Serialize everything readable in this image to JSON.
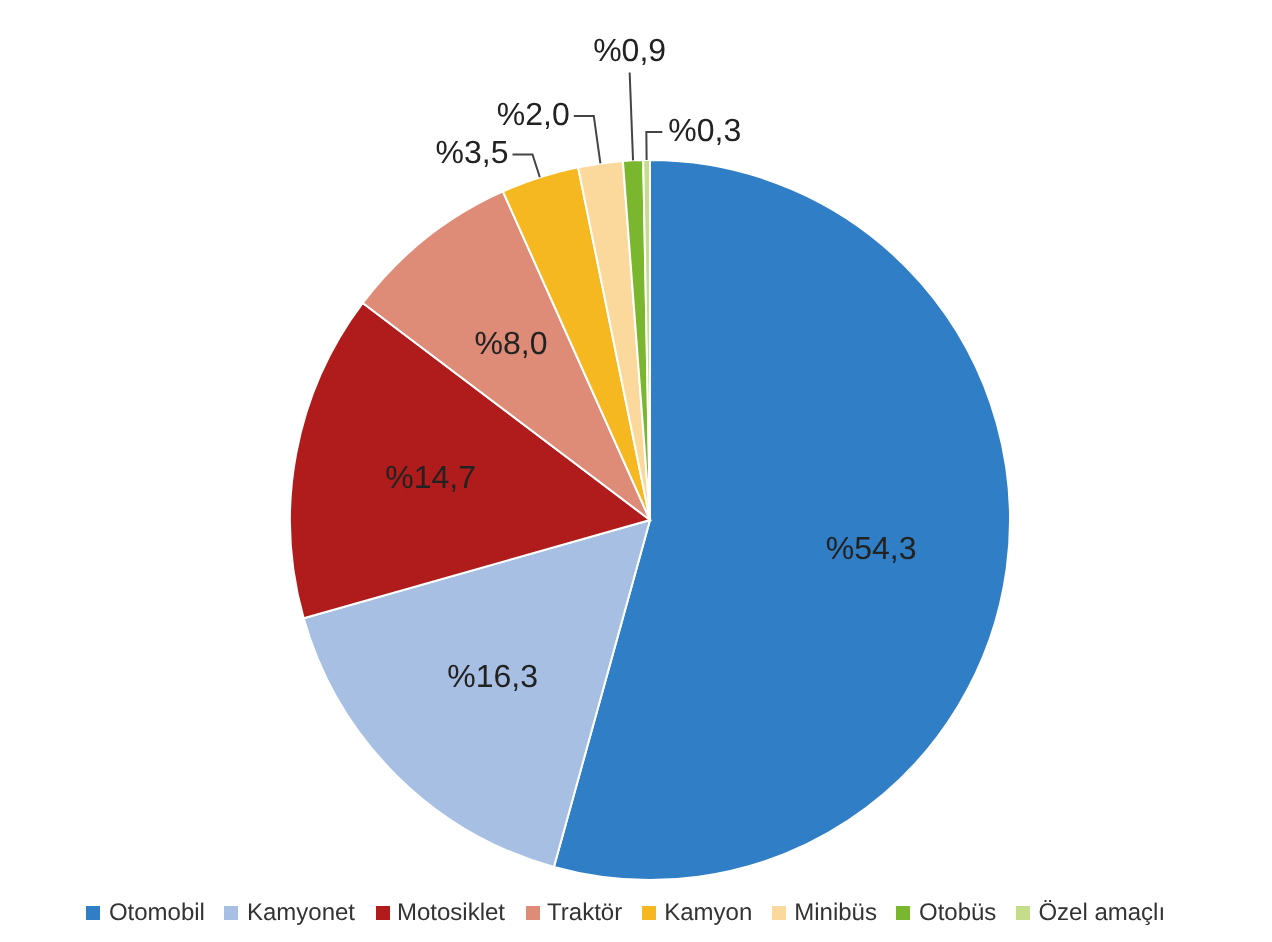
{
  "chart_data": {
    "type": "pie",
    "categories": [
      "Otomobil",
      "Kamyonet",
      "Motosiklet",
      "Traktör",
      "Kamyon",
      "Minibüs",
      "Otobüs",
      "Özel amaçlı"
    ],
    "values": [
      54.3,
      16.3,
      14.7,
      8.0,
      3.5,
      2.0,
      0.9,
      0.3
    ],
    "colors": [
      "#2f7ec6",
      "#a6bfe3",
      "#b01c1c",
      "#de8b78",
      "#f6b820",
      "#fbd89c",
      "#7ab72f",
      "#c5dd8b"
    ],
    "value_labels": [
      "%54,3",
      "%16,3",
      "%14,7",
      "%8,0",
      "%3,5",
      "%2,0",
      "%0,9",
      "%0,3"
    ],
    "legend": "bottom"
  }
}
